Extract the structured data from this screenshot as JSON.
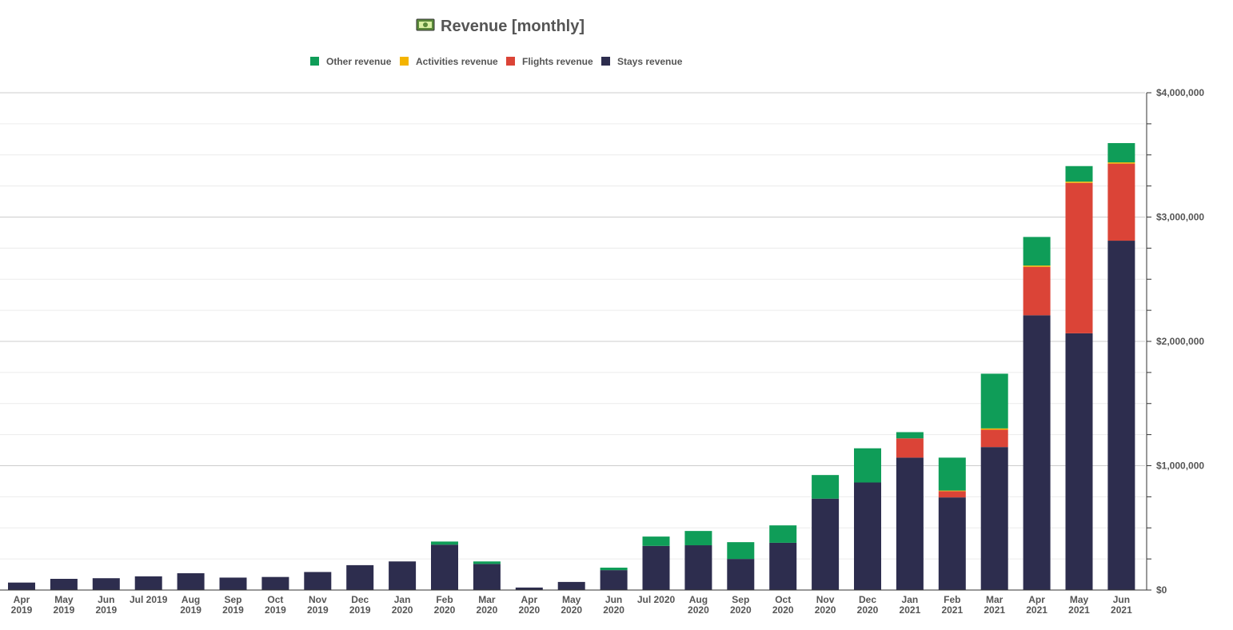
{
  "chart_data": {
    "type": "bar",
    "stacked": true,
    "title": "Revenue [monthly]",
    "title_icon": "money-icon",
    "legend_position": "top-center",
    "grid": true,
    "ylim": [
      0,
      4000000
    ],
    "y_ticks": [
      {
        "value": 0,
        "label": "$0"
      },
      {
        "value": 1000000,
        "label": "$1,000,000"
      },
      {
        "value": 2000000,
        "label": "$2,000,000"
      },
      {
        "value": 3000000,
        "label": "$3,000,000"
      },
      {
        "value": 4000000,
        "label": "$4,000,000"
      }
    ],
    "categories": [
      [
        "Apr",
        "2019"
      ],
      [
        "May",
        "2019"
      ],
      [
        "Jun",
        "2019"
      ],
      [
        "Jul 2019"
      ],
      [
        "Aug",
        "2019"
      ],
      [
        "Sep",
        "2019"
      ],
      [
        "Oct",
        "2019"
      ],
      [
        "Nov",
        "2019"
      ],
      [
        "Dec",
        "2019"
      ],
      [
        "Jan",
        "2020"
      ],
      [
        "Feb",
        "2020"
      ],
      [
        "Mar",
        "2020"
      ],
      [
        "Apr",
        "2020"
      ],
      [
        "May",
        "2020"
      ],
      [
        "Jun",
        "2020"
      ],
      [
        "Jul 2020"
      ],
      [
        "Aug",
        "2020"
      ],
      [
        "Sep",
        "2020"
      ],
      [
        "Oct",
        "2020"
      ],
      [
        "Nov",
        "2020"
      ],
      [
        "Dec",
        "2020"
      ],
      [
        "Jan",
        "2021"
      ],
      [
        "Feb",
        "2021"
      ],
      [
        "Mar",
        "2021"
      ],
      [
        "Apr",
        "2021"
      ],
      [
        "May",
        "2021"
      ],
      [
        "Jun",
        "2021"
      ]
    ],
    "legend_order": [
      "Other revenue",
      "Activities revenue",
      "Flights revenue",
      "Stays revenue"
    ],
    "series": [
      {
        "name": "Stays revenue",
        "color": "#2d2d4e",
        "values": [
          60000,
          90000,
          95000,
          110000,
          135000,
          100000,
          105000,
          145000,
          200000,
          230000,
          365000,
          210000,
          20000,
          65000,
          160000,
          355000,
          360000,
          250000,
          380000,
          735000,
          865000,
          1065000,
          745000,
          1150000,
          2210000,
          2065000,
          2810000
        ]
      },
      {
        "name": "Flights revenue",
        "color": "#db4437",
        "values": [
          0,
          0,
          0,
          0,
          0,
          0,
          0,
          0,
          0,
          0,
          0,
          0,
          0,
          0,
          0,
          0,
          0,
          0,
          0,
          0,
          0,
          155000,
          50000,
          140000,
          390000,
          1210000,
          620000
        ]
      },
      {
        "name": "Activities revenue",
        "color": "#f4b400",
        "values": [
          0,
          0,
          0,
          0,
          0,
          0,
          0,
          0,
          0,
          0,
          0,
          0,
          0,
          0,
          0,
          0,
          0,
          0,
          0,
          0,
          0,
          0,
          5000,
          10000,
          10000,
          10000,
          10000
        ]
      },
      {
        "name": "Other revenue",
        "color": "#0f9d58",
        "values": [
          0,
          0,
          0,
          0,
          0,
          0,
          0,
          0,
          0,
          0,
          25000,
          20000,
          0,
          0,
          20000,
          75000,
          115000,
          135000,
          140000,
          190000,
          275000,
          50000,
          265000,
          440000,
          230000,
          125000,
          155000
        ]
      }
    ]
  }
}
